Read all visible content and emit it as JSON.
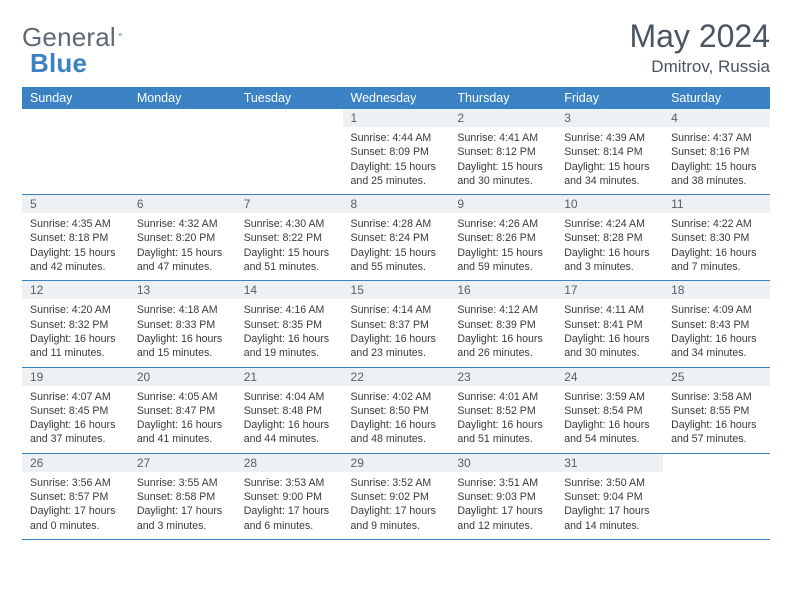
{
  "logo": {
    "text1": "General",
    "text2": "Blue"
  },
  "header": {
    "month": "May 2024",
    "location": "Dmitrov, Russia"
  },
  "colors": {
    "header_bar": "#3b82c4",
    "header_text": "#ffffff",
    "day_num_bg": "#eef1f3",
    "border": "#3b82c4",
    "body_text": "#3a3a3a"
  },
  "weekdays": [
    "Sunday",
    "Monday",
    "Tuesday",
    "Wednesday",
    "Thursday",
    "Friday",
    "Saturday"
  ],
  "weeks": [
    [
      {
        "n": "",
        "sr": "",
        "ss": "",
        "dl": ""
      },
      {
        "n": "",
        "sr": "",
        "ss": "",
        "dl": ""
      },
      {
        "n": "",
        "sr": "",
        "ss": "",
        "dl": ""
      },
      {
        "n": "1",
        "sr": "Sunrise: 4:44 AM",
        "ss": "Sunset: 8:09 PM",
        "dl": "Daylight: 15 hours and 25 minutes."
      },
      {
        "n": "2",
        "sr": "Sunrise: 4:41 AM",
        "ss": "Sunset: 8:12 PM",
        "dl": "Daylight: 15 hours and 30 minutes."
      },
      {
        "n": "3",
        "sr": "Sunrise: 4:39 AM",
        "ss": "Sunset: 8:14 PM",
        "dl": "Daylight: 15 hours and 34 minutes."
      },
      {
        "n": "4",
        "sr": "Sunrise: 4:37 AM",
        "ss": "Sunset: 8:16 PM",
        "dl": "Daylight: 15 hours and 38 minutes."
      }
    ],
    [
      {
        "n": "5",
        "sr": "Sunrise: 4:35 AM",
        "ss": "Sunset: 8:18 PM",
        "dl": "Daylight: 15 hours and 42 minutes."
      },
      {
        "n": "6",
        "sr": "Sunrise: 4:32 AM",
        "ss": "Sunset: 8:20 PM",
        "dl": "Daylight: 15 hours and 47 minutes."
      },
      {
        "n": "7",
        "sr": "Sunrise: 4:30 AM",
        "ss": "Sunset: 8:22 PM",
        "dl": "Daylight: 15 hours and 51 minutes."
      },
      {
        "n": "8",
        "sr": "Sunrise: 4:28 AM",
        "ss": "Sunset: 8:24 PM",
        "dl": "Daylight: 15 hours and 55 minutes."
      },
      {
        "n": "9",
        "sr": "Sunrise: 4:26 AM",
        "ss": "Sunset: 8:26 PM",
        "dl": "Daylight: 15 hours and 59 minutes."
      },
      {
        "n": "10",
        "sr": "Sunrise: 4:24 AM",
        "ss": "Sunset: 8:28 PM",
        "dl": "Daylight: 16 hours and 3 minutes."
      },
      {
        "n": "11",
        "sr": "Sunrise: 4:22 AM",
        "ss": "Sunset: 8:30 PM",
        "dl": "Daylight: 16 hours and 7 minutes."
      }
    ],
    [
      {
        "n": "12",
        "sr": "Sunrise: 4:20 AM",
        "ss": "Sunset: 8:32 PM",
        "dl": "Daylight: 16 hours and 11 minutes."
      },
      {
        "n": "13",
        "sr": "Sunrise: 4:18 AM",
        "ss": "Sunset: 8:33 PM",
        "dl": "Daylight: 16 hours and 15 minutes."
      },
      {
        "n": "14",
        "sr": "Sunrise: 4:16 AM",
        "ss": "Sunset: 8:35 PM",
        "dl": "Daylight: 16 hours and 19 minutes."
      },
      {
        "n": "15",
        "sr": "Sunrise: 4:14 AM",
        "ss": "Sunset: 8:37 PM",
        "dl": "Daylight: 16 hours and 23 minutes."
      },
      {
        "n": "16",
        "sr": "Sunrise: 4:12 AM",
        "ss": "Sunset: 8:39 PM",
        "dl": "Daylight: 16 hours and 26 minutes."
      },
      {
        "n": "17",
        "sr": "Sunrise: 4:11 AM",
        "ss": "Sunset: 8:41 PM",
        "dl": "Daylight: 16 hours and 30 minutes."
      },
      {
        "n": "18",
        "sr": "Sunrise: 4:09 AM",
        "ss": "Sunset: 8:43 PM",
        "dl": "Daylight: 16 hours and 34 minutes."
      }
    ],
    [
      {
        "n": "19",
        "sr": "Sunrise: 4:07 AM",
        "ss": "Sunset: 8:45 PM",
        "dl": "Daylight: 16 hours and 37 minutes."
      },
      {
        "n": "20",
        "sr": "Sunrise: 4:05 AM",
        "ss": "Sunset: 8:47 PM",
        "dl": "Daylight: 16 hours and 41 minutes."
      },
      {
        "n": "21",
        "sr": "Sunrise: 4:04 AM",
        "ss": "Sunset: 8:48 PM",
        "dl": "Daylight: 16 hours and 44 minutes."
      },
      {
        "n": "22",
        "sr": "Sunrise: 4:02 AM",
        "ss": "Sunset: 8:50 PM",
        "dl": "Daylight: 16 hours and 48 minutes."
      },
      {
        "n": "23",
        "sr": "Sunrise: 4:01 AM",
        "ss": "Sunset: 8:52 PM",
        "dl": "Daylight: 16 hours and 51 minutes."
      },
      {
        "n": "24",
        "sr": "Sunrise: 3:59 AM",
        "ss": "Sunset: 8:54 PM",
        "dl": "Daylight: 16 hours and 54 minutes."
      },
      {
        "n": "25",
        "sr": "Sunrise: 3:58 AM",
        "ss": "Sunset: 8:55 PM",
        "dl": "Daylight: 16 hours and 57 minutes."
      }
    ],
    [
      {
        "n": "26",
        "sr": "Sunrise: 3:56 AM",
        "ss": "Sunset: 8:57 PM",
        "dl": "Daylight: 17 hours and 0 minutes."
      },
      {
        "n": "27",
        "sr": "Sunrise: 3:55 AM",
        "ss": "Sunset: 8:58 PM",
        "dl": "Daylight: 17 hours and 3 minutes."
      },
      {
        "n": "28",
        "sr": "Sunrise: 3:53 AM",
        "ss": "Sunset: 9:00 PM",
        "dl": "Daylight: 17 hours and 6 minutes."
      },
      {
        "n": "29",
        "sr": "Sunrise: 3:52 AM",
        "ss": "Sunset: 9:02 PM",
        "dl": "Daylight: 17 hours and 9 minutes."
      },
      {
        "n": "30",
        "sr": "Sunrise: 3:51 AM",
        "ss": "Sunset: 9:03 PM",
        "dl": "Daylight: 17 hours and 12 minutes."
      },
      {
        "n": "31",
        "sr": "Sunrise: 3:50 AM",
        "ss": "Sunset: 9:04 PM",
        "dl": "Daylight: 17 hours and 14 minutes."
      },
      {
        "n": "",
        "sr": "",
        "ss": "",
        "dl": ""
      }
    ]
  ]
}
